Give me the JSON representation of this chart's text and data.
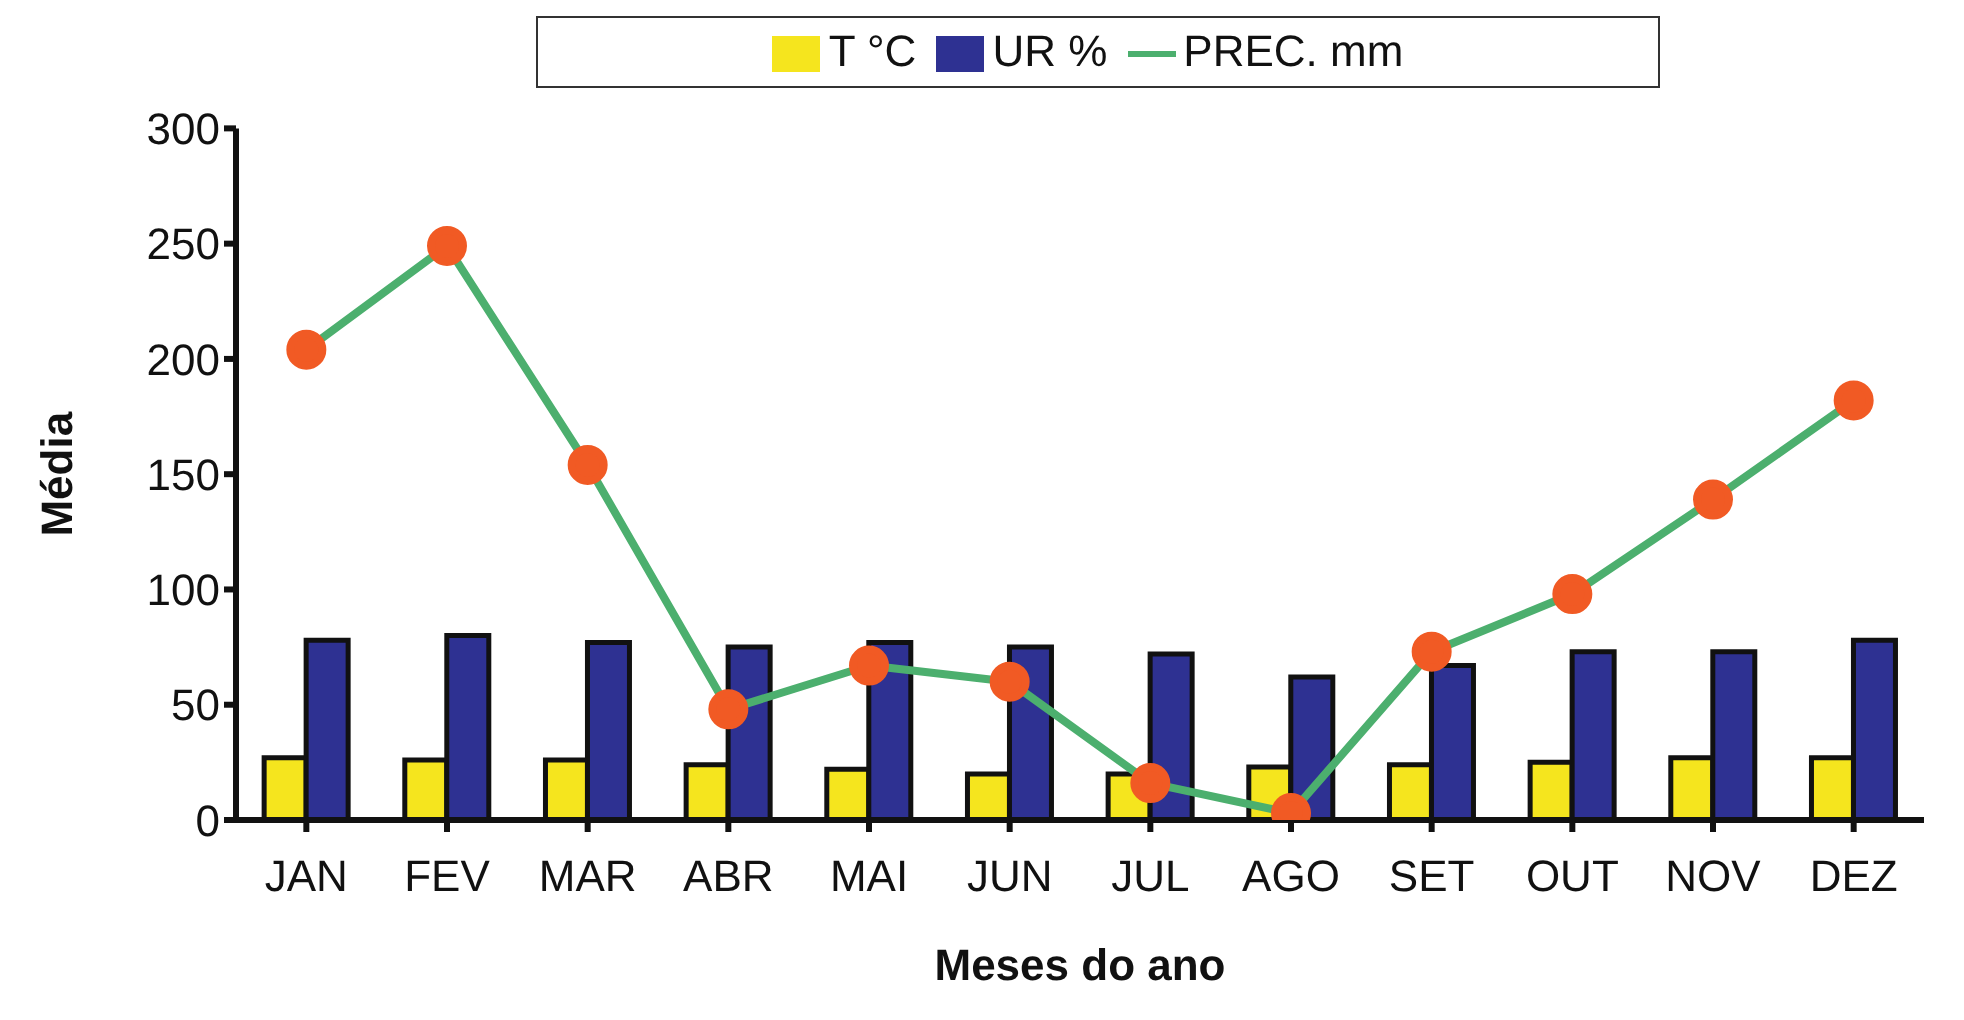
{
  "chart_data": {
    "type": "bar",
    "xlabel": "Meses do ano",
    "ylabel": "Média",
    "categories": [
      "JAN",
      "FEV",
      "MAR",
      "ABR",
      "MAI",
      "JUN",
      "JUL",
      "AGO",
      "SET",
      "OUT",
      "NOV",
      "DEZ"
    ],
    "series": [
      {
        "name": "T °C",
        "color": "#f5e51e",
        "values": [
          27,
          26,
          26,
          24,
          22,
          20,
          20,
          23,
          24,
          25,
          27,
          27
        ]
      },
      {
        "name": "UR %",
        "color": "#2e3192",
        "values": [
          78,
          80,
          77,
          75,
          77,
          75,
          72,
          62,
          67,
          73,
          73,
          78
        ]
      },
      {
        "name": "PREC. mm",
        "type": "line",
        "color": "#4caf6e",
        "marker": "circle",
        "values": [
          204,
          249,
          154,
          48,
          67,
          60,
          16,
          3,
          73,
          98,
          139,
          182
        ]
      }
    ],
    "ylim": [
      0,
      300
    ],
    "yticks": [
      0,
      50,
      100,
      150,
      200,
      250,
      300
    ],
    "legend": "top"
  }
}
